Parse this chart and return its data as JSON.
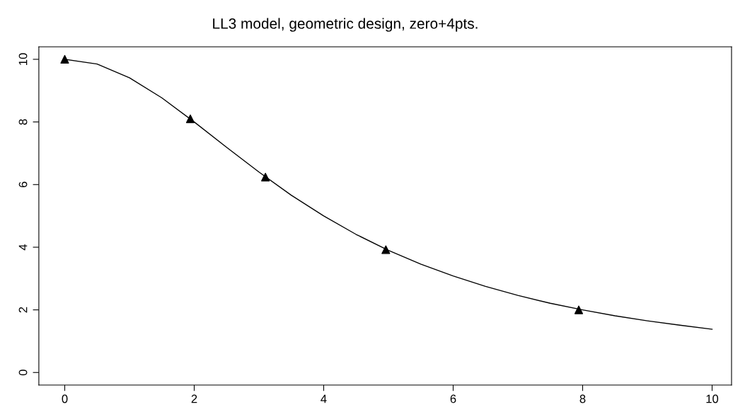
{
  "chart_data": {
    "type": "scatter",
    "title": "LL3 model, geometric design, zero+4pts.",
    "series": [
      {
        "color": "#000000",
        "marker": "triangle",
        "x": [
          0,
          1.94,
          3.1,
          4.96,
          7.94
        ],
        "values": [
          10,
          8.1,
          6.24,
          3.92,
          2.0
        ]
      },
      {
        "type": "line",
        "color": "#000000",
        "marker": "none",
        "line_style": "solid",
        "x": [
          0,
          0.5,
          1,
          1.5,
          2,
          2.5,
          3,
          3.5,
          4,
          4.5,
          5,
          5.5,
          6,
          6.5,
          7,
          7.5,
          8,
          8.5,
          9,
          9.5,
          10
        ],
        "values": [
          10,
          9.85,
          9.41,
          8.77,
          8.0,
          7.19,
          6.4,
          5.66,
          5.0,
          4.41,
          3.9,
          3.46,
          3.08,
          2.75,
          2.46,
          2.21,
          2.0,
          1.81,
          1.65,
          1.51,
          1.38
        ]
      }
    ],
    "xlim": [
      -0.4,
      10.3
    ],
    "ylim": [
      -0.4,
      10.4
    ],
    "xticks": [
      0,
      2,
      4,
      6,
      8,
      10
    ],
    "yticks": [
      0,
      2,
      4,
      6,
      8,
      10
    ],
    "grid": false,
    "legend": false
  }
}
